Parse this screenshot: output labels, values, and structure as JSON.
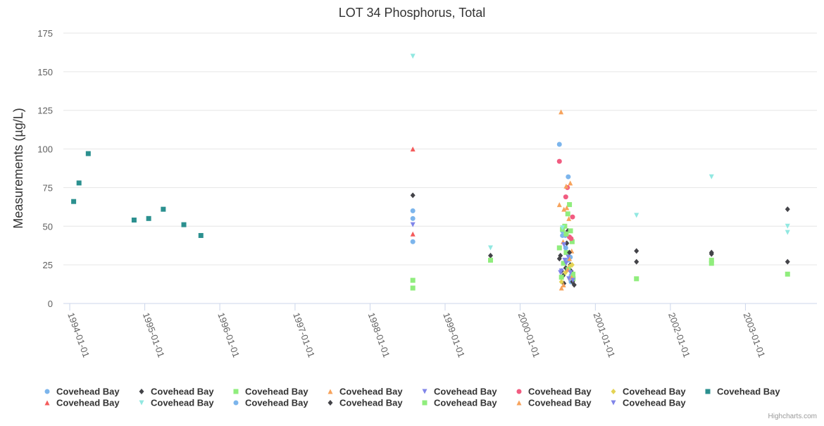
{
  "chart_data": {
    "type": "scatter",
    "title": "LOT 34 Phosphorus, Total",
    "ylabel": "Measurements (µg/L)",
    "xlabel": "",
    "ylim": [
      0,
      175
    ],
    "xlim": [
      "1993-12-01",
      "2003-12-15"
    ],
    "yticks": [
      0,
      25,
      50,
      75,
      100,
      125,
      150,
      175
    ],
    "xticks": [
      "1994-01-01",
      "1995-01-01",
      "1996-01-01",
      "1997-01-01",
      "1998-01-01",
      "1999-01-01",
      "2000-01-01",
      "2001-01-01",
      "2002-01-01",
      "2003-01-01"
    ],
    "grid": true,
    "legend_position": "bottom",
    "credit": "Highcharts.com",
    "series": [
      {
        "name": "Covehead Bay",
        "color": "#7cb5ec",
        "marker": "circle",
        "points": [
          [
            "1998-07-28",
            60
          ],
          [
            "1998-07-28",
            40
          ],
          [
            "2000-07-25",
            47
          ],
          [
            "2000-08-08",
            44
          ],
          [
            "2000-08-22",
            28
          ],
          [
            "2000-09-05",
            18
          ]
        ]
      },
      {
        "name": "Covehead Bay",
        "color": "#434348",
        "marker": "diamond",
        "points": [
          [
            "1998-07-28",
            70
          ],
          [
            "1999-08-10",
            31
          ],
          [
            "2000-07-10",
            29
          ],
          [
            "2000-07-20",
            21
          ],
          [
            "2000-08-01",
            13
          ],
          [
            "2000-08-15",
            39
          ],
          [
            "2000-09-01",
            25
          ],
          [
            "2000-09-20",
            12
          ],
          [
            "2001-07-20",
            34
          ],
          [
            "2001-07-20",
            27
          ],
          [
            "2002-07-20",
            33
          ],
          [
            "2003-07-25",
            61
          ],
          [
            "2003-07-25",
            27
          ]
        ]
      },
      {
        "name": "Covehead Bay",
        "color": "#90ed7d",
        "marker": "square",
        "points": [
          [
            "1998-07-28",
            15
          ],
          [
            "1998-07-28",
            10
          ],
          [
            "1999-08-10",
            28
          ],
          [
            "2000-07-10",
            36
          ],
          [
            "2000-07-25",
            48
          ],
          [
            "2000-08-05",
            50
          ],
          [
            "2000-08-12",
            33
          ],
          [
            "2000-08-20",
            58
          ],
          [
            "2000-08-28",
            64
          ],
          [
            "2000-09-10",
            40
          ],
          [
            "2000-09-15",
            16
          ],
          [
            "2001-07-20",
            16
          ],
          [
            "2002-07-20",
            28
          ],
          [
            "2002-07-20",
            26
          ],
          [
            "2003-07-25",
            19
          ]
        ]
      },
      {
        "name": "Covehead Bay",
        "color": "#f7a35c",
        "marker": "triangle",
        "points": [
          [
            "2000-07-10",
            64
          ],
          [
            "2000-07-18",
            124
          ],
          [
            "2000-08-01",
            61
          ],
          [
            "2000-08-15",
            62
          ],
          [
            "2000-08-25",
            55
          ],
          [
            "2000-09-01",
            78
          ],
          [
            "2000-09-08",
            34
          ],
          [
            "2000-07-30",
            12
          ]
        ]
      },
      {
        "name": "Covehead Bay",
        "color": "#8085e9",
        "marker": "triangle-down",
        "points": [
          [
            "1998-07-28",
            51
          ],
          [
            "2000-07-15",
            20
          ],
          [
            "2000-08-05",
            28
          ],
          [
            "2000-08-25",
            16
          ]
        ]
      },
      {
        "name": "Covehead Bay",
        "color": "#f15c80",
        "marker": "circle",
        "points": [
          [
            "2000-07-10",
            92
          ],
          [
            "2000-08-10",
            69
          ],
          [
            "2000-08-18",
            75
          ],
          [
            "2000-08-28",
            43
          ],
          [
            "2000-09-05",
            42
          ],
          [
            "2000-09-12",
            56
          ]
        ]
      },
      {
        "name": "Covehead Bay",
        "color": "#e4d354",
        "marker": "diamond",
        "points": [
          [
            "2000-07-20",
            14
          ],
          [
            "2000-08-08",
            20
          ],
          [
            "2000-08-30",
            24
          ],
          [
            "2000-09-10",
            25
          ]
        ]
      },
      {
        "name": "Covehead Bay",
        "color": "#2b908f",
        "marker": "square",
        "points": [
          [
            "1994-01-20",
            66
          ],
          [
            "1994-02-15",
            78
          ],
          [
            "1994-04-01",
            97
          ],
          [
            "1994-11-10",
            54
          ],
          [
            "1995-01-20",
            55
          ],
          [
            "1995-04-01",
            61
          ],
          [
            "1995-07-10",
            51
          ],
          [
            "1995-10-01",
            44
          ]
        ]
      },
      {
        "name": "Covehead Bay",
        "color": "#f45b5b",
        "marker": "triangle",
        "points": [
          [
            "1998-07-28",
            100
          ],
          [
            "1998-07-28",
            45
          ]
        ]
      },
      {
        "name": "Covehead Bay",
        "color": "#91e8e1",
        "marker": "triangle-down",
        "points": [
          [
            "1998-07-28",
            160
          ],
          [
            "1999-08-10",
            36
          ],
          [
            "2000-07-25",
            49
          ],
          [
            "2001-07-20",
            57
          ],
          [
            "2002-07-20",
            82
          ],
          [
            "2003-07-25",
            50
          ],
          [
            "2003-07-25",
            46
          ]
        ]
      },
      {
        "name": "Covehead Bay",
        "color": "#7cb5ec",
        "marker": "circle",
        "points": [
          [
            "1998-07-28",
            55
          ],
          [
            "2000-07-10",
            103
          ],
          [
            "2000-07-25",
            44
          ],
          [
            "2000-08-10",
            36
          ],
          [
            "2000-08-22",
            82
          ],
          [
            "2000-09-01",
            30
          ],
          [
            "2000-09-05",
            14
          ]
        ]
      },
      {
        "name": "Covehead Bay",
        "color": "#434348",
        "marker": "diamond",
        "points": [
          [
            "2000-07-15",
            31
          ],
          [
            "2000-07-28",
            18
          ],
          [
            "2000-08-10",
            23
          ],
          [
            "2000-08-20",
            47
          ],
          [
            "2000-08-28",
            33
          ],
          [
            "2000-09-05",
            21
          ],
          [
            "2000-09-12",
            14
          ],
          [
            "2002-07-20",
            32
          ]
        ]
      },
      {
        "name": "Covehead Bay",
        "color": "#90ed7d",
        "marker": "square",
        "points": [
          [
            "2000-07-20",
            17
          ],
          [
            "2000-07-30",
            26
          ],
          [
            "2000-08-12",
            45
          ],
          [
            "2000-08-22",
            22
          ],
          [
            "2000-09-02",
            47
          ],
          [
            "2000-09-14",
            19
          ]
        ]
      },
      {
        "name": "Covehead Bay",
        "color": "#f7a35c",
        "marker": "triangle",
        "points": [
          [
            "2000-07-20",
            10
          ],
          [
            "2000-07-28",
            40
          ],
          [
            "2000-08-12",
            76
          ],
          [
            "2000-08-20",
            22
          ],
          [
            "2000-08-28",
            29
          ],
          [
            "2000-09-08",
            17
          ]
        ]
      },
      {
        "name": "Covehead Bay",
        "color": "#8085e9",
        "marker": "triangle-down",
        "points": [
          [
            "2000-07-20",
            21
          ],
          [
            "2000-08-01",
            38
          ],
          [
            "2000-08-12",
            26
          ],
          [
            "2000-08-22",
            30
          ],
          [
            "2000-09-02",
            20
          ],
          [
            "2000-09-14",
            15
          ]
        ]
      }
    ]
  }
}
